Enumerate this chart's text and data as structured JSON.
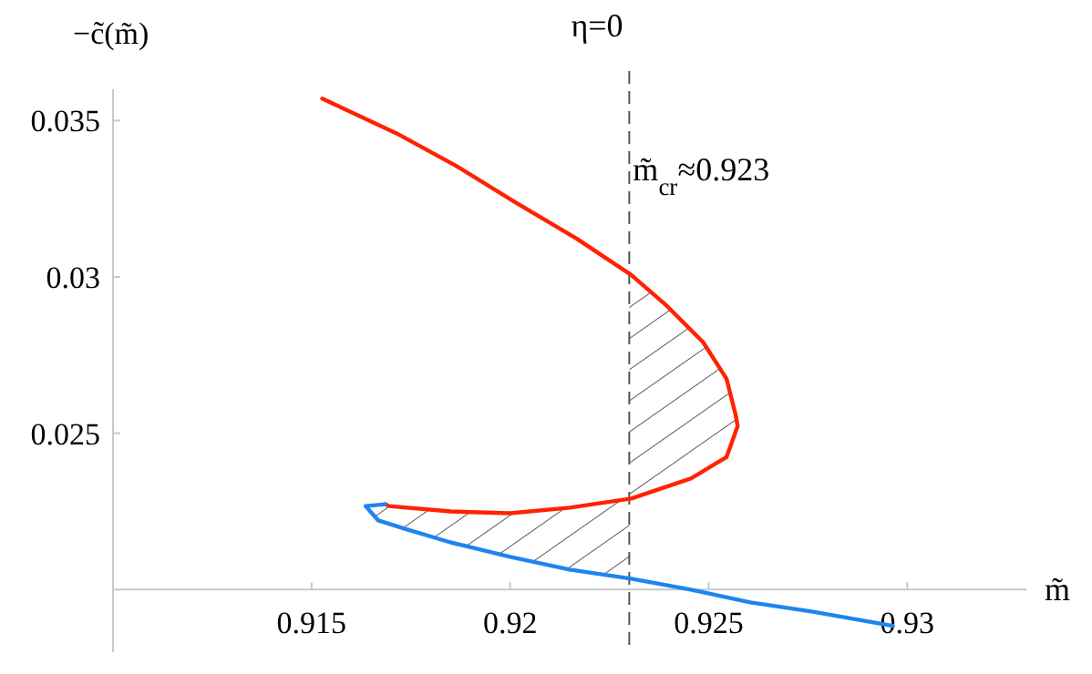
{
  "chart_data": {
    "type": "line",
    "title": "η=0",
    "xlabel": "m̃",
    "ylabel": "−c̃(m̃)",
    "xlim": [
      0.91,
      0.933
    ],
    "ylim": [
      0.018,
      0.036
    ],
    "xticks": [
      0.915,
      0.92,
      0.925,
      0.93
    ],
    "yticks": [
      0.025,
      0.03,
      0.035
    ],
    "line_style": "solid",
    "ref_lines": [
      {
        "axis": "x",
        "value": 0.923,
        "label": "m̃$_{cr}$≈0.923",
        "line_style": "dashed",
        "color": "#555555"
      }
    ],
    "series": [
      {
        "color": "#ff2200",
        "x": [
          0.91527,
          0.91714,
          0.91864,
          0.92014,
          0.92168,
          0.92305,
          0.92395,
          0.92486,
          0.92545,
          0.92568,
          0.92573,
          0.92545,
          0.92455,
          0.92305,
          0.9215,
          0.92,
          0.9185,
          0.91695,
          0.91686
        ],
        "values": [
          0.0357,
          0.03459,
          0.03355,
          0.03238,
          0.03122,
          0.03006,
          0.02907,
          0.02791,
          0.02674,
          0.02558,
          0.02523,
          0.02424,
          0.02355,
          0.02291,
          0.02262,
          0.02244,
          0.0225,
          0.02267,
          0.02273
        ]
      },
      {
        "color": "#1f84f0",
        "x": [
          0.91686,
          0.91636,
          0.91668,
          0.91741,
          0.9185,
          0.92,
          0.9215,
          0.92305,
          0.92455,
          0.92605,
          0.92759,
          0.92964
        ],
        "values": [
          0.02273,
          0.02267,
          0.02221,
          0.02192,
          0.02151,
          0.02105,
          0.02064,
          0.02035,
          0.02,
          0.01959,
          0.0193,
          0.01884
        ]
      }
    ]
  }
}
